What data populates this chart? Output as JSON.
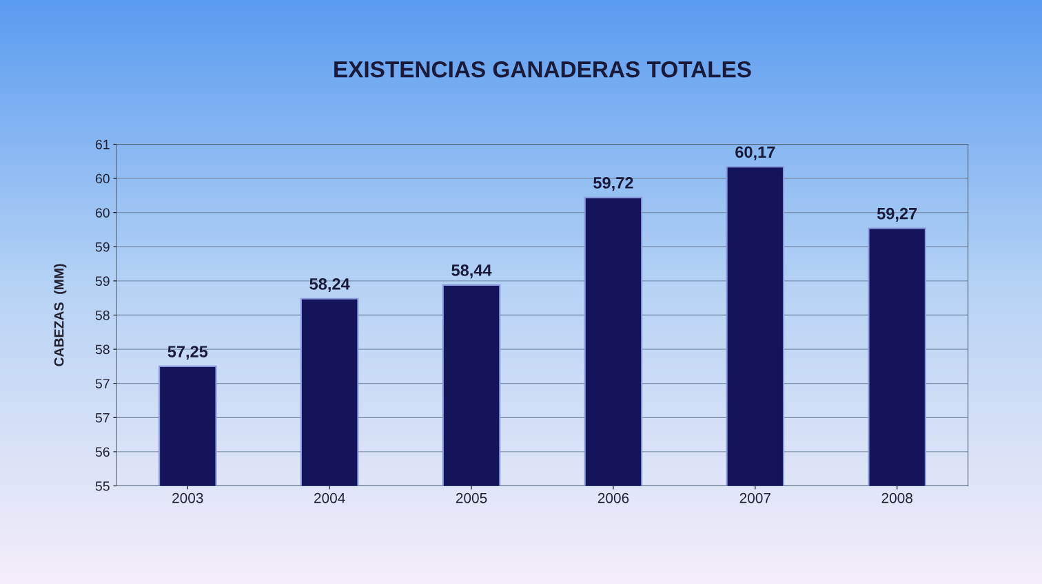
{
  "chart_data": {
    "type": "bar",
    "title": "EXISTENCIAS GANADERAS TOTALES",
    "ylabel": "CABEZAS  (MM)",
    "categories": [
      "2003",
      "2004",
      "2005",
      "2006",
      "2007",
      "2008"
    ],
    "values": [
      57.25,
      58.24,
      58.44,
      59.72,
      60.17,
      59.27
    ],
    "color": "#14145a",
    "value_labels": [
      "57,25",
      "58,24",
      "58,44",
      "59,72",
      "60,17",
      "59,27"
    ],
    "ylim": [
      55.5,
      60.5
    ],
    "yticks": [
      {
        "value": 55.5,
        "label": "55"
      },
      {
        "value": 56.0,
        "label": "56"
      },
      {
        "value": 56.5,
        "label": "57"
      },
      {
        "value": 57.0,
        "label": "57"
      },
      {
        "value": 57.5,
        "label": "58"
      },
      {
        "value": 58.0,
        "label": "58"
      },
      {
        "value": 58.5,
        "label": "59"
      },
      {
        "value": 59.0,
        "label": "59"
      },
      {
        "value": 59.5,
        "label": "60"
      },
      {
        "value": 60.0,
        "label": "60"
      },
      {
        "value": 60.5,
        "label": "61"
      }
    ],
    "grid": "y"
  }
}
